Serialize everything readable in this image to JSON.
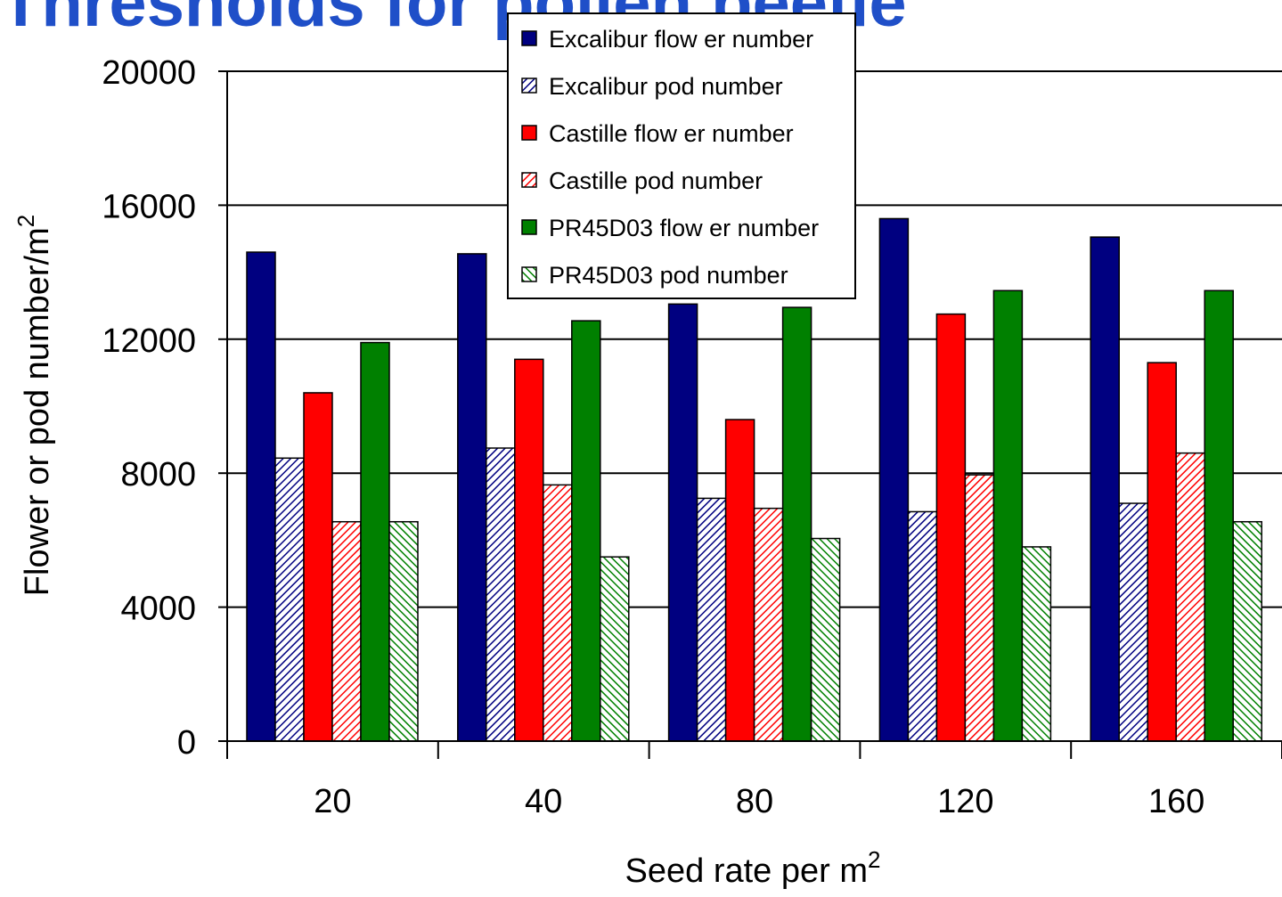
{
  "slide": {
    "title": "Thresholds for pollen beetle"
  },
  "chart_data": {
    "type": "bar",
    "title": "",
    "xlabel": "Seed rate per m",
    "xlabel_superscript": "2",
    "ylabel": "Flower or pod number/m",
    "ylabel_superscript": "2",
    "ylim": [
      0,
      20000
    ],
    "yticks": [
      0,
      4000,
      8000,
      12000,
      16000,
      20000
    ],
    "grid": true,
    "legend_position": "top-center",
    "categories": [
      "20",
      "40",
      "80",
      "120",
      "160"
    ],
    "series": [
      {
        "name": "Excalibur flow er number",
        "values": [
          14600,
          14550,
          13050,
          15600,
          15050
        ],
        "color": "#000080",
        "pattern": "solid"
      },
      {
        "name": "Excalibur pod number",
        "values": [
          8450,
          8750,
          7250,
          6850,
          7100
        ],
        "color": "#000080",
        "pattern": "hatch"
      },
      {
        "name": "Castille flow er number",
        "values": [
          10400,
          11400,
          9600,
          12750,
          11300
        ],
        "color": "#ff0000",
        "pattern": "solid"
      },
      {
        "name": "Castille pod number",
        "values": [
          6550,
          7650,
          6950,
          7950,
          8600
        ],
        "color": "#ff0000",
        "pattern": "hatch"
      },
      {
        "name": "PR45D03 flow er number",
        "values": [
          11900,
          12550,
          12950,
          13450,
          13450
        ],
        "color": "#008000",
        "pattern": "solid"
      },
      {
        "name": "PR45D03 pod number",
        "values": [
          6550,
          5500,
          6050,
          5800,
          6550
        ],
        "color": "#008000",
        "pattern": "hatch-reverse"
      }
    ]
  }
}
